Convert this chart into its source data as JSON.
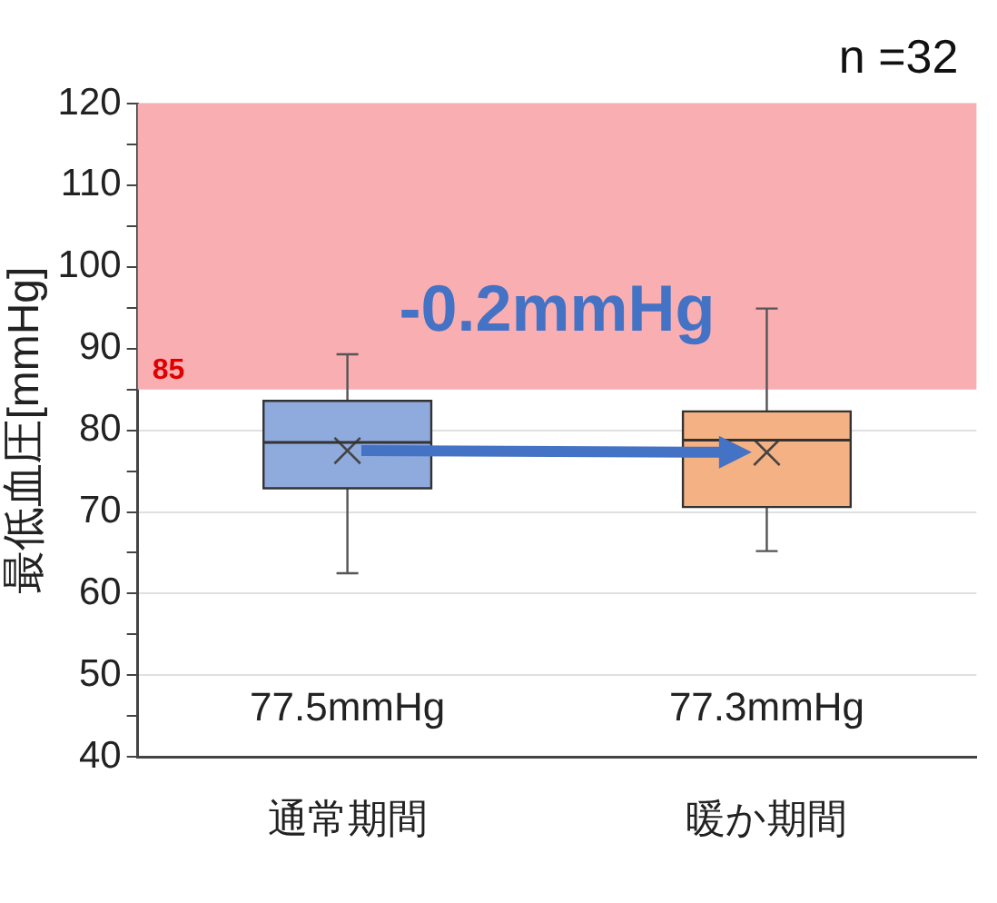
{
  "chart_data": {
    "type": "box",
    "ylabel": "最低血圧[mmHg]",
    "categories": [
      "通常期間",
      "暖か期間"
    ],
    "boxes": [
      {
        "low": 62.5,
        "q1": 72.9,
        "median": 78.5,
        "q3": 83.6,
        "high": 89.3,
        "mean": 77.5
      },
      {
        "low": 65.2,
        "q1": 70.6,
        "median": 78.8,
        "q3": 82.3,
        "high": 94.9,
        "mean": 77.3
      }
    ],
    "colors": [
      "#8faadc",
      "#f4b183"
    ],
    "ylim": [
      40,
      120
    ],
    "yticks": [
      40,
      {
        "value": 45,
        "label": null
      },
      50,
      {
        "value": 55,
        "label": null
      },
      60,
      {
        "value": 65,
        "label": null
      },
      70,
      {
        "value": 75,
        "label": null
      },
      80,
      {
        "value": 85,
        "label": null
      },
      90,
      {
        "value": 95,
        "label": null
      },
      100,
      {
        "value": 105,
        "label": null
      },
      110,
      {
        "value": 115,
        "label": null
      },
      120
    ],
    "grid": "y",
    "bands": [
      {
        "axis": "y",
        "from": 85,
        "to": 120,
        "label": "85",
        "color": "#f9aeb2"
      }
    ],
    "annotations": [
      "n =32",
      "-0.2mmHg",
      "77.5mmHg",
      "77.3mmHg"
    ]
  }
}
